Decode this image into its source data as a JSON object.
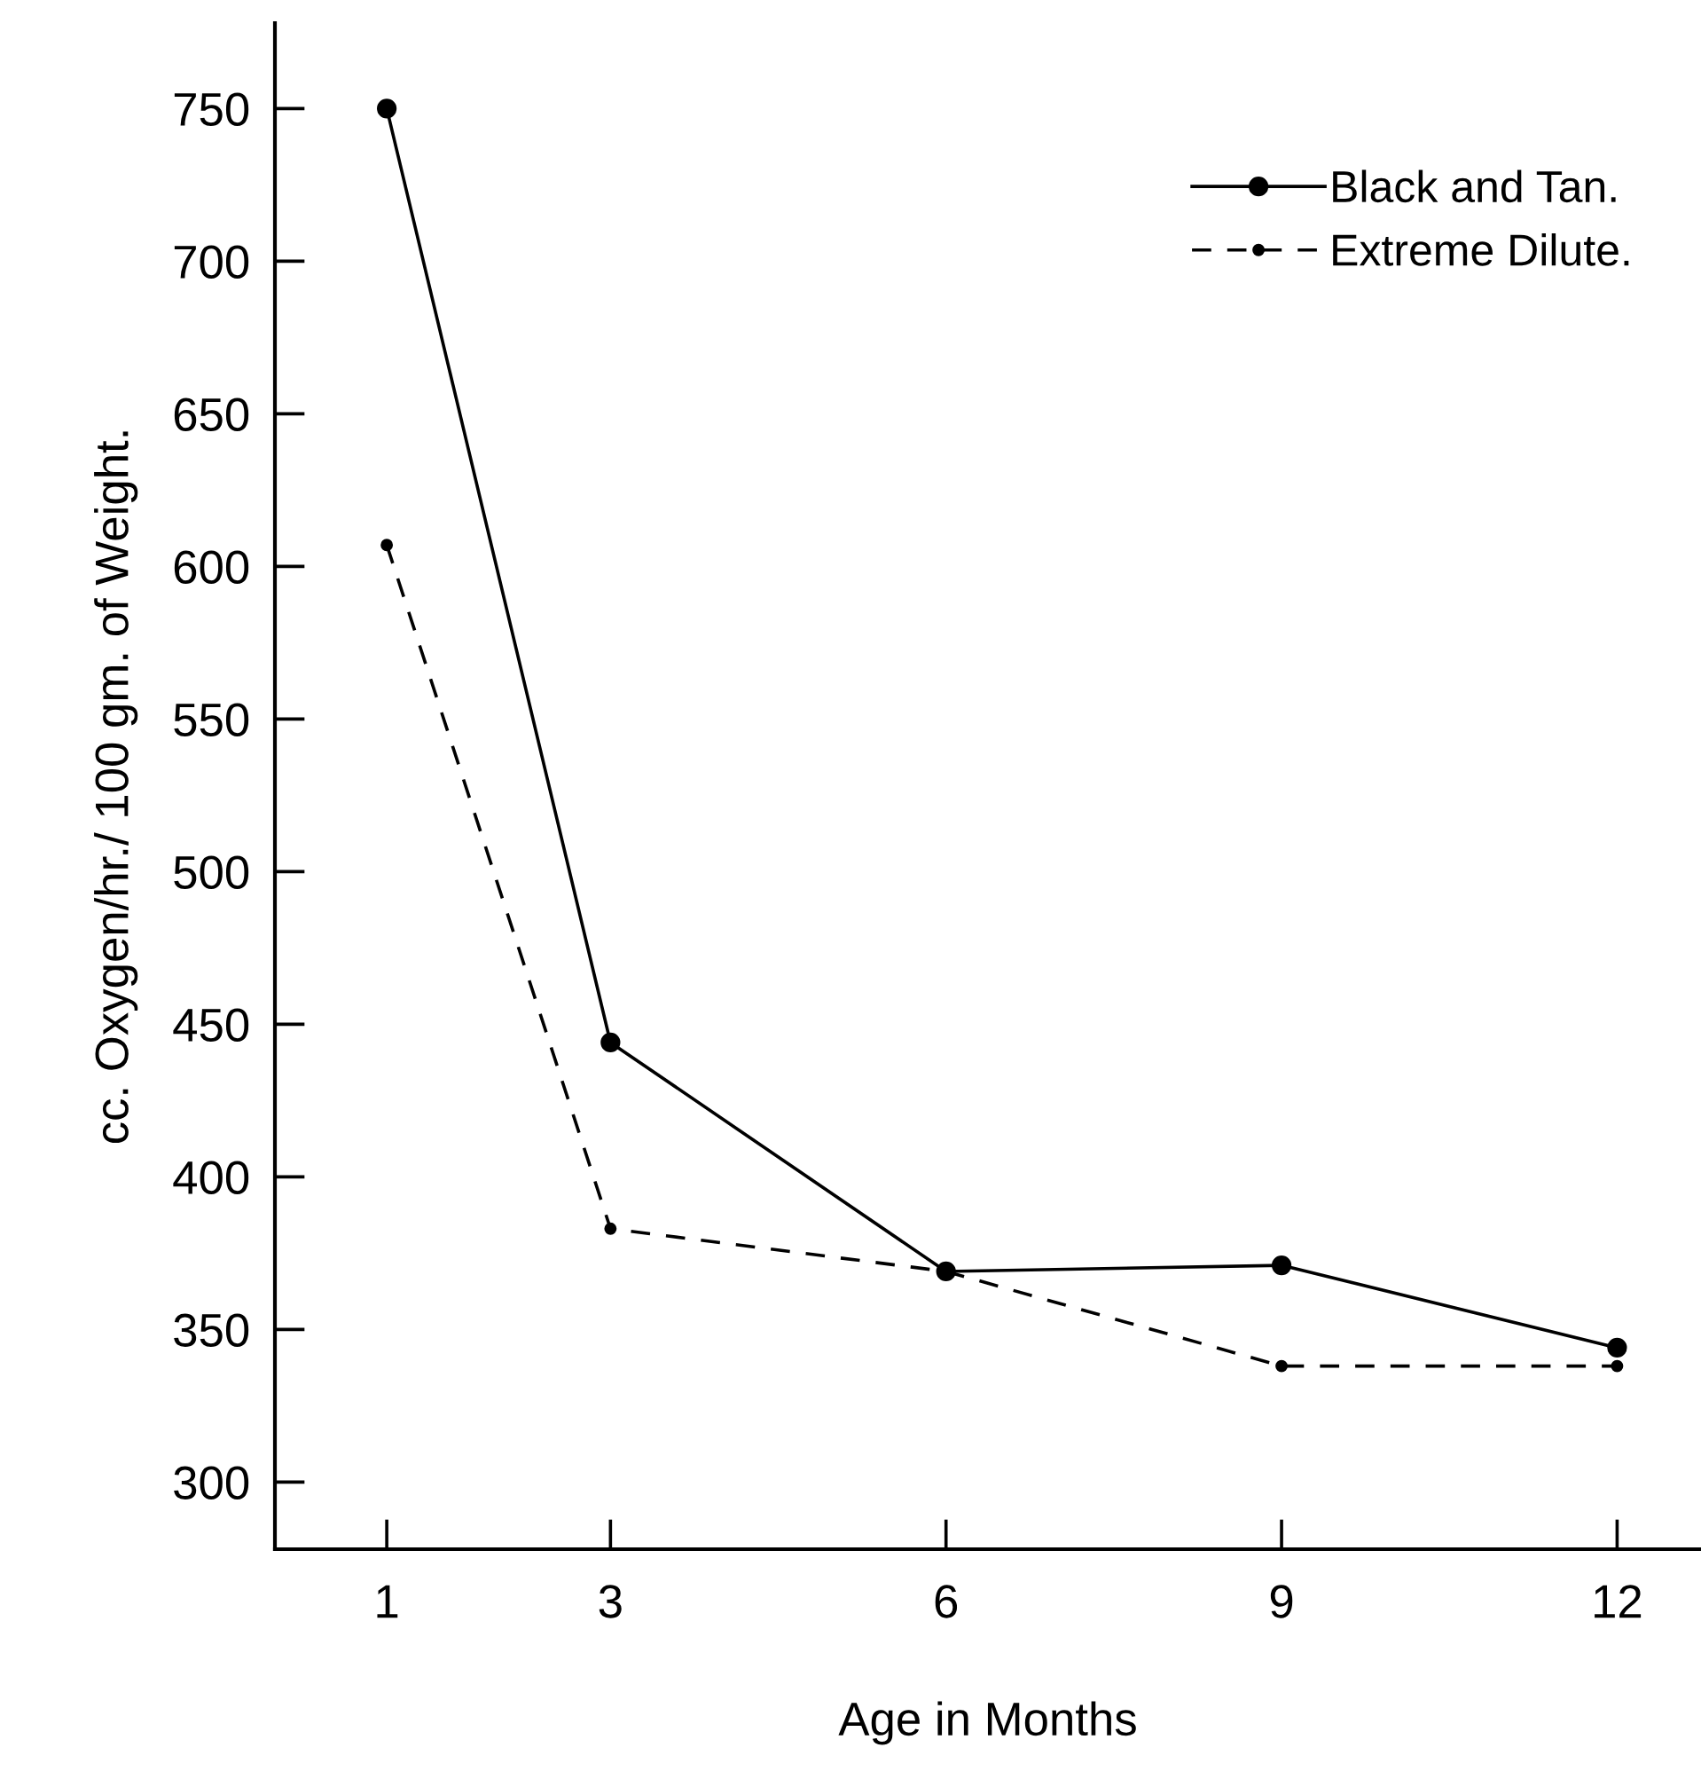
{
  "chart_data": {
    "type": "line",
    "xlabel": "Age in Months",
    "ylabel": "cc. Oxygen/hr./ 100 gm. of Weight.",
    "x": [
      1,
      3,
      6,
      9,
      12
    ],
    "series": [
      {
        "name": "Black and Tan.",
        "color": "#000000",
        "line_style": "solid",
        "values": [
          750,
          444,
          369,
          371,
          344
        ]
      },
      {
        "name": "Extreme Dilute.",
        "color": "#000000",
        "line_style": "dashed",
        "values": [
          607,
          383,
          369,
          338,
          338
        ]
      }
    ],
    "xlim": [
      0,
      12.75
    ],
    "xticks": [
      1,
      3,
      6,
      9,
      12
    ],
    "ylim": [
      278,
      778
    ],
    "yticks": [
      300,
      350,
      400,
      450,
      500,
      550,
      600,
      650,
      700,
      750
    ],
    "marker": "circle",
    "grid": false,
    "legend": "top right"
  }
}
